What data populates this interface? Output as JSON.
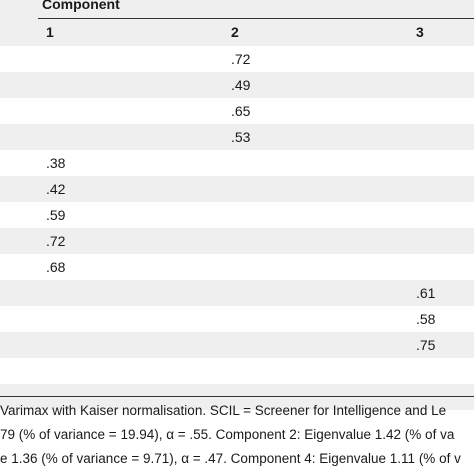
{
  "header": {
    "component_label": "Component",
    "columns": [
      "1",
      "2",
      "3"
    ]
  },
  "rows": [
    {
      "c1": "",
      "c2": ".72",
      "c3": ""
    },
    {
      "c1": "",
      "c2": ".49",
      "c3": ""
    },
    {
      "c1": "",
      "c2": ".65",
      "c3": ""
    },
    {
      "c1": "",
      "c2": ".53",
      "c3": ""
    },
    {
      "c1": ".38",
      "c2": "",
      "c3": ""
    },
    {
      "c1": ".42",
      "c2": "",
      "c3": ""
    },
    {
      "c1": ".59",
      "c2": "",
      "c3": ""
    },
    {
      "c1": ".72",
      "c2": "",
      "c3": ""
    },
    {
      "c1": ".68",
      "c2": "",
      "c3": ""
    },
    {
      "c1": "",
      "c2": "",
      "c3": ".61"
    },
    {
      "c1": "",
      "c2": "",
      "c3": ".58"
    },
    {
      "c1": "",
      "c2": "",
      "c3": ".75"
    },
    {
      "c1": "",
      "c2": "",
      "c3": ""
    },
    {
      "c1": "",
      "c2": "",
      "c3": ""
    }
  ],
  "footnote": {
    "line1": " Varimax with Kaiser normalisation. SCIL = Screener for Intelligence and Le",
    "line2": "79 (% of variance = 19.94), α = .55. Component 2: Eigenvalue 1.42 (% of va",
    "line3": "e 1.36 (% of variance = 9.71), α = .47. Component 4: Eigenvalue 1.11 (% of v"
  }
}
